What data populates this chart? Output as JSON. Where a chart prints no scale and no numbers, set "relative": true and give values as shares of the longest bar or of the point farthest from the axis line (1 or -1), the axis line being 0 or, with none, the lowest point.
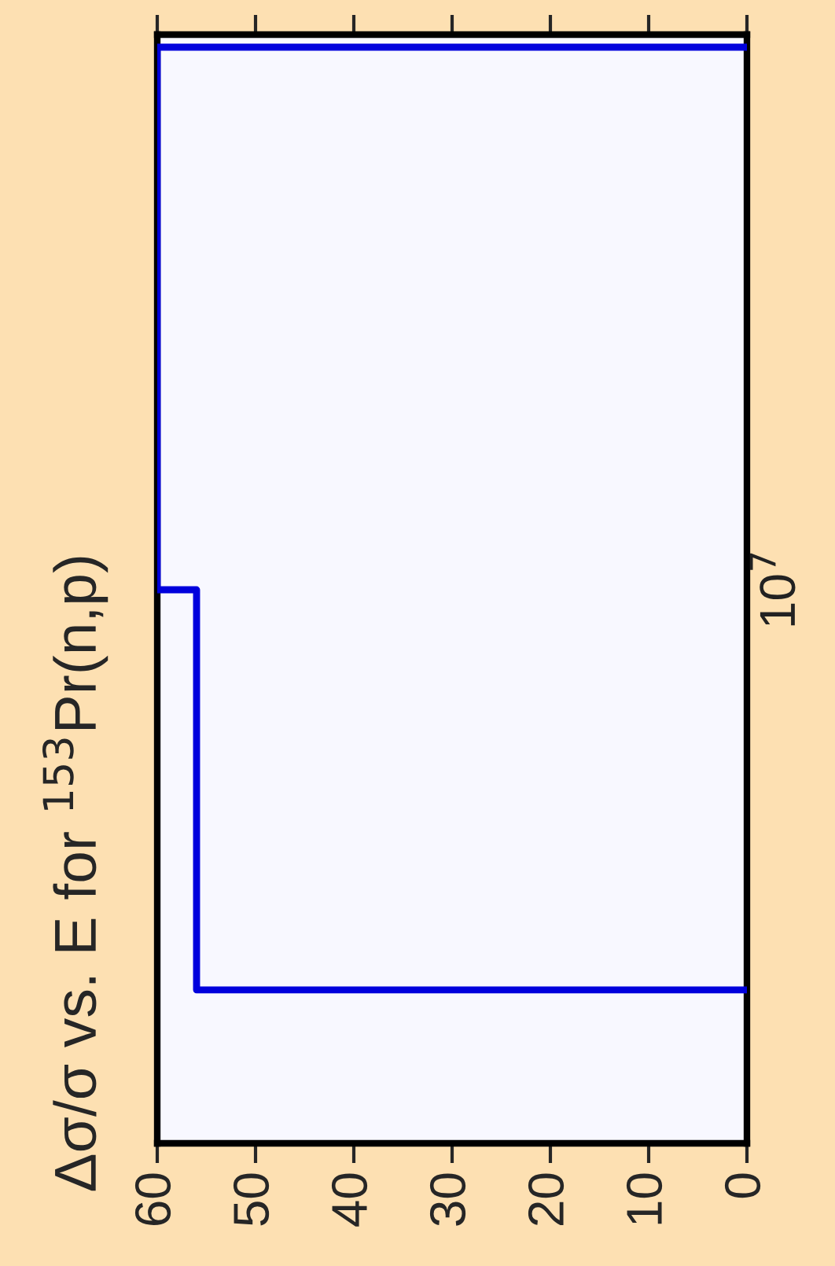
{
  "chart_data": {
    "type": "line",
    "title": "Δσ/σ vs. E for $^{153}$Pr(n,p)",
    "series": [
      {
        "color": "#0000dd",
        "x": [
          0,
          56,
          56,
          60,
          60,
          0
        ],
        "values": [
          0.14,
          0.14,
          0.505,
          0.505,
          1,
          1
        ]
      }
    ],
    "xlim": [
      60,
      0
    ],
    "xticks": [
      0,
      10,
      20,
      30,
      40,
      50,
      60
    ],
    "relative": true,
    "annotations": [
      "10$^{7}$"
    ],
    "grid": false,
    "legend": false,
    "marker": "none",
    "line_style": "solid"
  }
}
